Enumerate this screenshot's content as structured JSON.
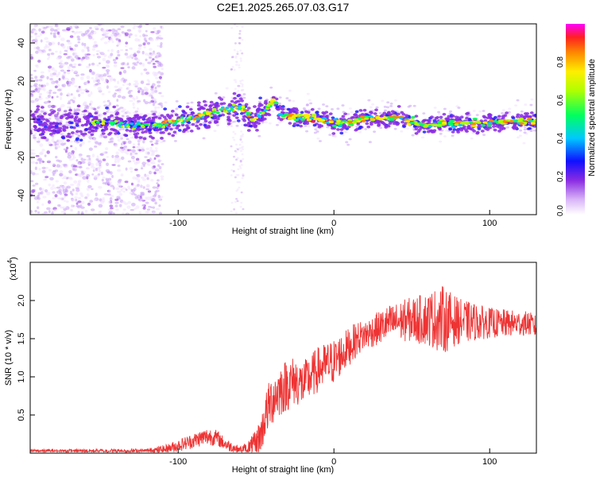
{
  "figure_title": "C2E1.2025.265.07.03.G17",
  "chart_data": [
    {
      "type": "heatmap",
      "title": "C2E1.2025.265.07.03.G17",
      "xlabel": "Height of straight line (km)",
      "ylabel": "Frequency (Hz)",
      "xlim": [
        -195,
        130
      ],
      "ylim": [
        -50,
        50
      ],
      "xticks": [
        -100,
        0,
        100
      ],
      "xtick_labels": [
        "-100",
        "0",
        "100"
      ],
      "yticks": [
        -40,
        -20,
        0,
        20,
        40
      ],
      "ytick_labels": [
        "-40",
        "-20",
        "0",
        "20",
        "40"
      ],
      "colorbar": {
        "label": "Normalized spectral amplitude",
        "range": [
          0,
          1
        ],
        "ticks": [
          0,
          0.2,
          0.4,
          0.6,
          0.8
        ],
        "tick_labels": [
          "0.0",
          "0.2",
          "0.4",
          "0.6",
          "0.8"
        ]
      },
      "ridge": {
        "x": [
          -195,
          -170,
          -150,
          -130,
          -110,
          -100,
          -90,
          -80,
          -70,
          -60,
          -52,
          -47,
          -42,
          -38,
          -35,
          -30,
          -20,
          -10,
          0,
          10,
          20,
          30,
          40,
          50,
          55,
          60,
          70,
          80,
          90,
          100,
          110,
          120,
          130
        ],
        "y": [
          -2,
          -3,
          -2,
          -3,
          -3,
          -1,
          1,
          3,
          5,
          7,
          0,
          3,
          7,
          10,
          3,
          2,
          1,
          0,
          -2,
          -2,
          1,
          0,
          1,
          -1,
          -3,
          -3,
          -2,
          -2,
          -2,
          -2,
          -1,
          -1,
          -1
        ]
      }
    },
    {
      "type": "line",
      "xlabel": "Height of straight line (km)",
      "ylabel": "SNR (10 * v/v)",
      "scale_label": "(x10",
      "scale_exponent": "4",
      "xlim": [
        -195,
        130
      ],
      "ylim": [
        0,
        2.5
      ],
      "xticks": [
        -100,
        0,
        100
      ],
      "xtick_labels": [
        "-100",
        "0",
        "100"
      ],
      "yticks": [
        0.5,
        1.0,
        1.5,
        2.0
      ],
      "ytick_labels": [
        "0.5",
        "1.0",
        "1.5",
        "2.0"
      ],
      "series": [
        {
          "name": "SNR",
          "color": "#ee3333",
          "envelope": {
            "x": [
              -195,
              -120,
              -108,
              -100,
              -92,
              -85,
              -80,
              -75,
              -70,
              -62,
              -56,
              -50,
              -46,
              -44,
              -40,
              -36,
              -30,
              -25,
              -20,
              -15,
              -10,
              -5,
              0,
              5,
              10,
              15,
              20,
              25,
              30,
              35,
              40,
              45,
              50,
              55,
              60,
              65,
              70,
              75,
              80,
              85,
              90,
              95,
              100,
              105,
              110,
              115,
              120,
              125,
              130
            ],
            "y": [
              0.03,
              0.03,
              0.05,
              0.1,
              0.15,
              0.2,
              0.22,
              0.2,
              0.12,
              0.05,
              0.04,
              0.1,
              0.3,
              0.5,
              0.7,
              0.8,
              0.9,
              0.95,
              0.9,
              1.0,
              1.1,
              1.15,
              1.2,
              1.3,
              1.4,
              1.5,
              1.55,
              1.6,
              1.65,
              1.7,
              1.72,
              1.74,
              1.75,
              1.75,
              1.76,
              1.76,
              1.75,
              1.74,
              1.73,
              1.72,
              1.72,
              1.71,
              1.71,
              1.7,
              1.7,
              1.7,
              1.7,
              1.7,
              1.65
            ]
          },
          "noise": {
            "x": [
              -195,
              -120,
              -100,
              -80,
              -60,
              -50,
              -40,
              -30,
              -20,
              0,
              20,
              40,
              60,
              70,
              80,
              100,
              130
            ],
            "amplitude": [
              0.02,
              0.03,
              0.08,
              0.12,
              0.05,
              0.2,
              0.35,
              0.35,
              0.3,
              0.3,
              0.2,
              0.25,
              0.35,
              0.45,
              0.3,
              0.2,
              0.15
            ]
          }
        }
      ]
    }
  ]
}
